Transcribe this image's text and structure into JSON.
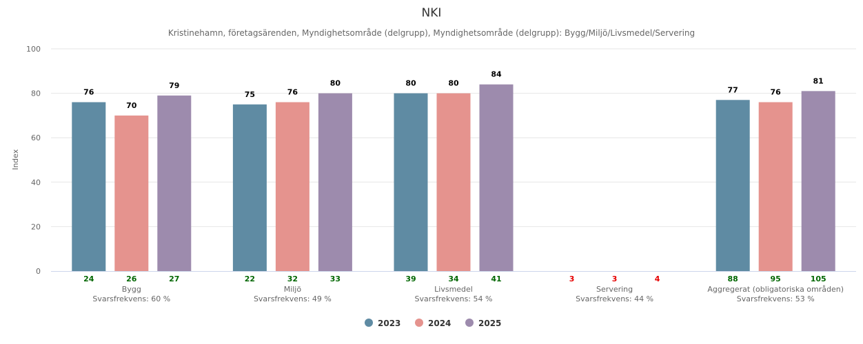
{
  "chart_data": {
    "type": "bar",
    "title": "NKI",
    "subtitle": "Kristinehamn, företagsärenden, Myndighetsområde (delgrupp), Myndighetsområde (delgrupp): Bygg/Miljö/Livsmedel/Servering",
    "ylabel": "Index",
    "ylim": [
      0,
      100
    ],
    "yticks": [
      0,
      20,
      40,
      60,
      80,
      100
    ],
    "grid": true,
    "legend_position": "bottom",
    "categories": [
      "Bygg",
      "Miljö",
      "Livsmedel",
      "Servering",
      "Aggregerat (obligatoriska områden)"
    ],
    "category_sublabels": [
      "Svarsfrekvens: 60 %",
      "Svarsfrekvens: 49 %",
      "Svarsfrekvens: 54 %",
      "Svarsfrekvens: 44 %",
      "Svarsfrekvens: 53 %"
    ],
    "series": [
      {
        "name": "2023",
        "color": "#5f8ba3",
        "values": [
          76,
          75,
          80,
          null,
          77
        ],
        "counts": [
          24,
          22,
          39,
          3,
          88
        ]
      },
      {
        "name": "2024",
        "color": "#e5938e",
        "values": [
          70,
          76,
          80,
          null,
          76
        ],
        "counts": [
          26,
          32,
          34,
          3,
          95
        ]
      },
      {
        "name": "2025",
        "color": "#9d8bad",
        "values": [
          79,
          80,
          84,
          null,
          81
        ],
        "counts": [
          27,
          33,
          41,
          4,
          105
        ]
      }
    ],
    "count_colors": {
      "sufficient": "#006600",
      "insufficient": "#e60000"
    }
  }
}
